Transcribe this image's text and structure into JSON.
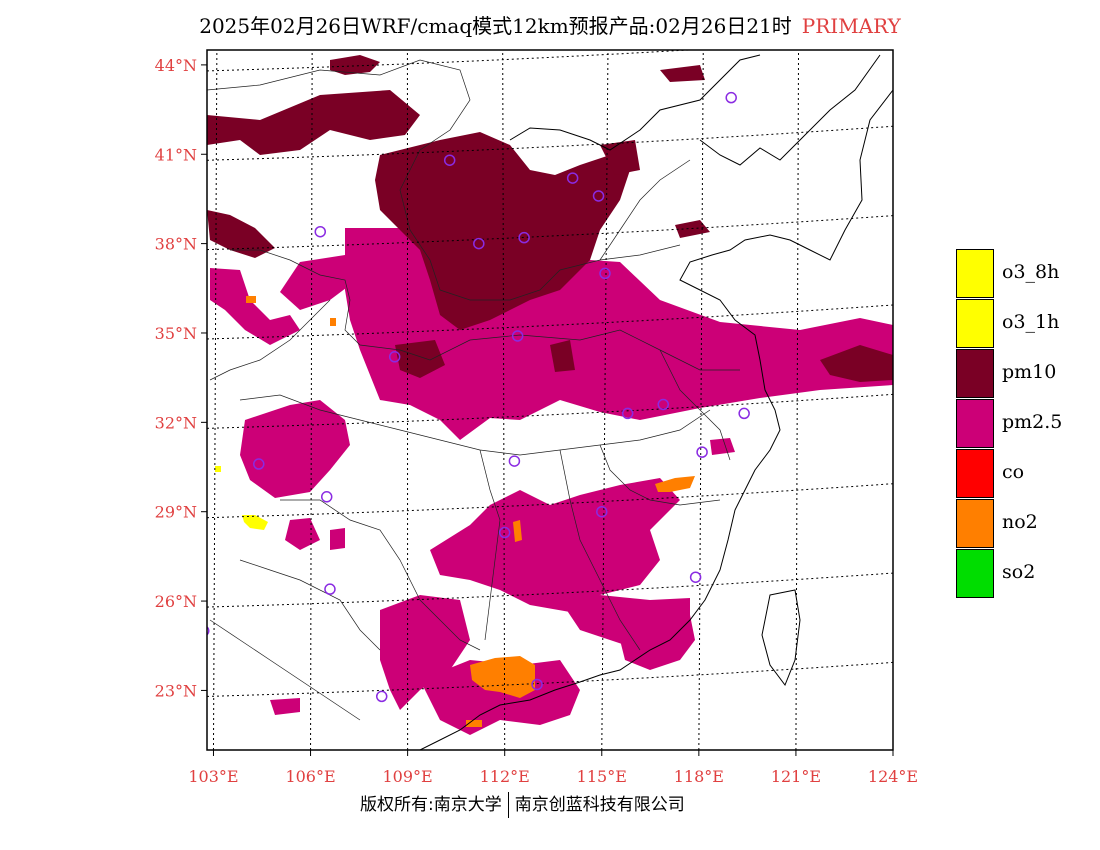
{
  "title": {
    "main": "2025年02月26日WRF/cmaq模式12km预报产品:02月26日21时",
    "tag": "PRIMARY"
  },
  "axes": {
    "lat_labels": [
      "44°N",
      "41°N",
      "38°N",
      "35°N",
      "32°N",
      "29°N",
      "26°N",
      "23°N"
    ],
    "lat_values": [
      44,
      41,
      38,
      35,
      32,
      29,
      26,
      23
    ],
    "lon_labels": [
      "103°E",
      "106°E",
      "109°E",
      "112°E",
      "115°E",
      "118°E",
      "121°E",
      "124°E"
    ],
    "lon_values": [
      103,
      106,
      109,
      112,
      115,
      118,
      121,
      124
    ],
    "lon_range": [
      102.8,
      124
    ],
    "lat_range": [
      21,
      44.5
    ],
    "grid": true
  },
  "legend": {
    "items": [
      {
        "label": "o3_8h",
        "color": "#ffff00"
      },
      {
        "label": "o3_1h",
        "color": "#ffff00"
      },
      {
        "label": "pm10",
        "color": "#7a0025"
      },
      {
        "label": "pm2.5",
        "color": "#cc0077"
      },
      {
        "label": "co",
        "color": "#ff0000"
      },
      {
        "label": "no2",
        "color": "#ff7f00"
      },
      {
        "label": "so2",
        "color": "#00dd00"
      }
    ]
  },
  "colors": {
    "pm10": "#7a0025",
    "pm25": "#cc0077",
    "no2": "#ff7f00",
    "o3": "#ffff00",
    "station": "#8a2be2",
    "label": "#e04040"
  },
  "stations": [
    {
      "lon": 119,
      "lat": 42.9
    },
    {
      "lon": 110.3,
      "lat": 40.8
    },
    {
      "lon": 114.1,
      "lat": 40.2
    },
    {
      "lon": 114.9,
      "lat": 39.6
    },
    {
      "lon": 106.3,
      "lat": 38.4
    },
    {
      "lon": 111.2,
      "lat": 38.0
    },
    {
      "lon": 112.6,
      "lat": 38.2
    },
    {
      "lon": 115.1,
      "lat": 37.0
    },
    {
      "lon": 112.4,
      "lat": 34.9
    },
    {
      "lon": 108.6,
      "lat": 34.2
    },
    {
      "lon": 115.8,
      "lat": 32.3
    },
    {
      "lon": 116.9,
      "lat": 32.6
    },
    {
      "lon": 119.4,
      "lat": 32.3
    },
    {
      "lon": 118.1,
      "lat": 31.0
    },
    {
      "lon": 104.4,
      "lat": 30.6
    },
    {
      "lon": 112.3,
      "lat": 30.7
    },
    {
      "lon": 106.5,
      "lat": 29.5
    },
    {
      "lon": 115.0,
      "lat": 29.0
    },
    {
      "lon": 112.0,
      "lat": 28.3
    },
    {
      "lon": 106.6,
      "lat": 26.4
    },
    {
      "lon": 117.9,
      "lat": 26.8
    },
    {
      "lon": 102.7,
      "lat": 25.0
    },
    {
      "lon": 108.2,
      "lat": 22.8
    },
    {
      "lon": 113.0,
      "lat": 23.2
    }
  ],
  "footer": {
    "left": "版权所有:南京大学",
    "right": "南京创蓝科技有限公司"
  }
}
